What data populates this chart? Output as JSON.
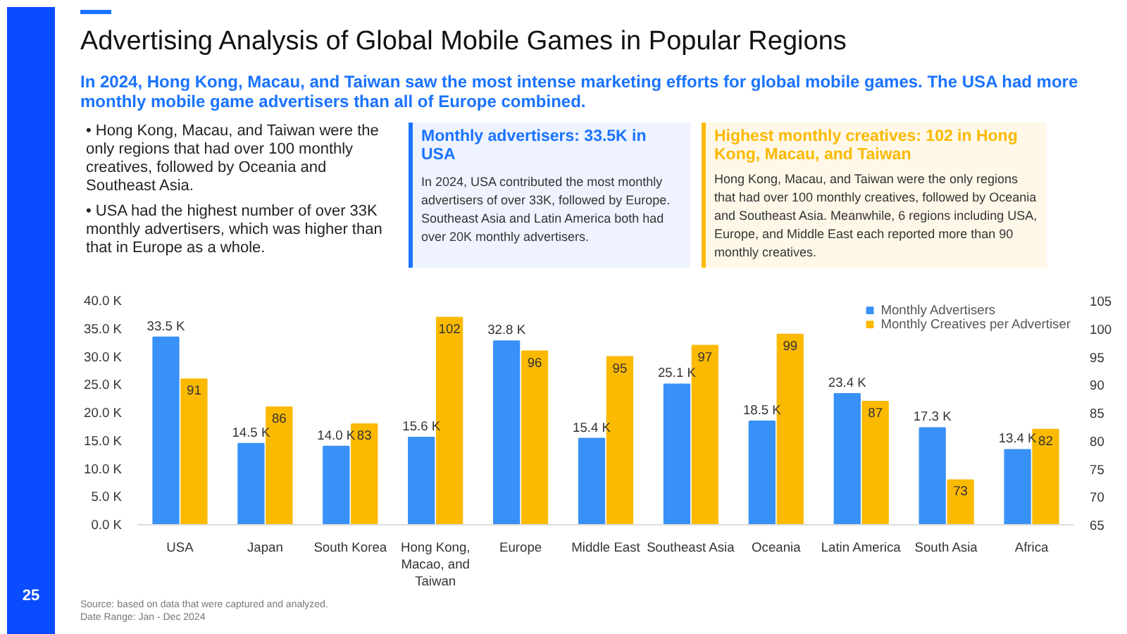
{
  "chart_data": {
    "type": "bar",
    "title": "Advertising Analysis of Global Mobile Games in Popular Regions",
    "subtitle": "In 2024, Hong Kong, Macau, and Taiwan saw the most intense marketing efforts for global mobile games. The USA had more monthly mobile game advertisers than all of Europe combined.",
    "categories": [
      "USA",
      "Japan",
      "South Korea",
      "Hong Kong, Macao, and Taiwan",
      "Europe",
      "Middle East",
      "Southeast Asia",
      "Oceania",
      "Latin America",
      "South Asia",
      "Africa"
    ],
    "series": [
      {
        "name": "Monthly Advertisers",
        "color": "#3891f7",
        "values": [
          33.5,
          14.5,
          14.0,
          15.6,
          32.8,
          15.4,
          25.1,
          18.5,
          23.4,
          17.3,
          13.4
        ],
        "value_labels": [
          "33.5 K",
          "14.5 K",
          "14.0 K",
          "15.6 K",
          "32.8 K",
          "15.4 K",
          "25.1 K",
          "18.5 K",
          "23.4 K",
          "17.3 K",
          "13.4 K"
        ]
      },
      {
        "name": "Monthly Creatives per Advertiser",
        "color": "#fbb900",
        "axis": "y2",
        "values": [
          91,
          86,
          83,
          102,
          96,
          95,
          97,
          99,
          87,
          73,
          82
        ],
        "value_labels": [
          "91",
          "86",
          "83",
          "102",
          "96",
          "95",
          "97",
          "99",
          "87",
          "73",
          "82"
        ]
      }
    ],
    "ylim": [
      0,
      40
    ],
    "yticks": [
      {
        "value": 0,
        "label": "0.0 K"
      },
      {
        "value": 5,
        "label": "5.0 K"
      },
      {
        "value": 10,
        "label": "10.0 K"
      },
      {
        "value": 15,
        "label": "15.0 K"
      },
      {
        "value": 20,
        "label": "20.0 K"
      },
      {
        "value": 25,
        "label": "25.0 K"
      },
      {
        "value": 30,
        "label": "30.0 K"
      },
      {
        "value": 35,
        "label": "35.0 K"
      },
      {
        "value": 40,
        "label": "40.0 K"
      }
    ],
    "y2lim": [
      65,
      105
    ],
    "y2ticks": [
      65,
      70,
      75,
      80,
      85,
      90,
      95,
      100,
      105
    ],
    "legend": "top right",
    "annotations": [
      "• Hong Kong, Macau, and Taiwan were the only regions that had over 100 monthly creatives, followed by Oceania and Southeast Asia.",
      "• USA had the highest number of over 33K monthly advertisers, which was higher than that in Europe as a whole.",
      "Monthly advertisers: 33.5K in USA",
      "In 2024, USA contributed the most monthly advertisers of over 33K, followed by Europe. Southeast Asia and Latin America both had over 20K monthly advertisers.",
      "Highest monthly creatives: 102 in Hong Kong, Macau, and Taiwan",
      "Hong Kong, Macau, and Taiwan were the only regions that had over 100 monthly creatives, followed by Oceania and Southeast Asia. Meanwhile, 6 regions including USA, Europe, and Middle East each reported more than 90 monthly creatives.",
      "Source: based on data that were captured and analyzed.",
      "Date Range: Jan - Dec 2024",
      "25"
    ]
  }
}
